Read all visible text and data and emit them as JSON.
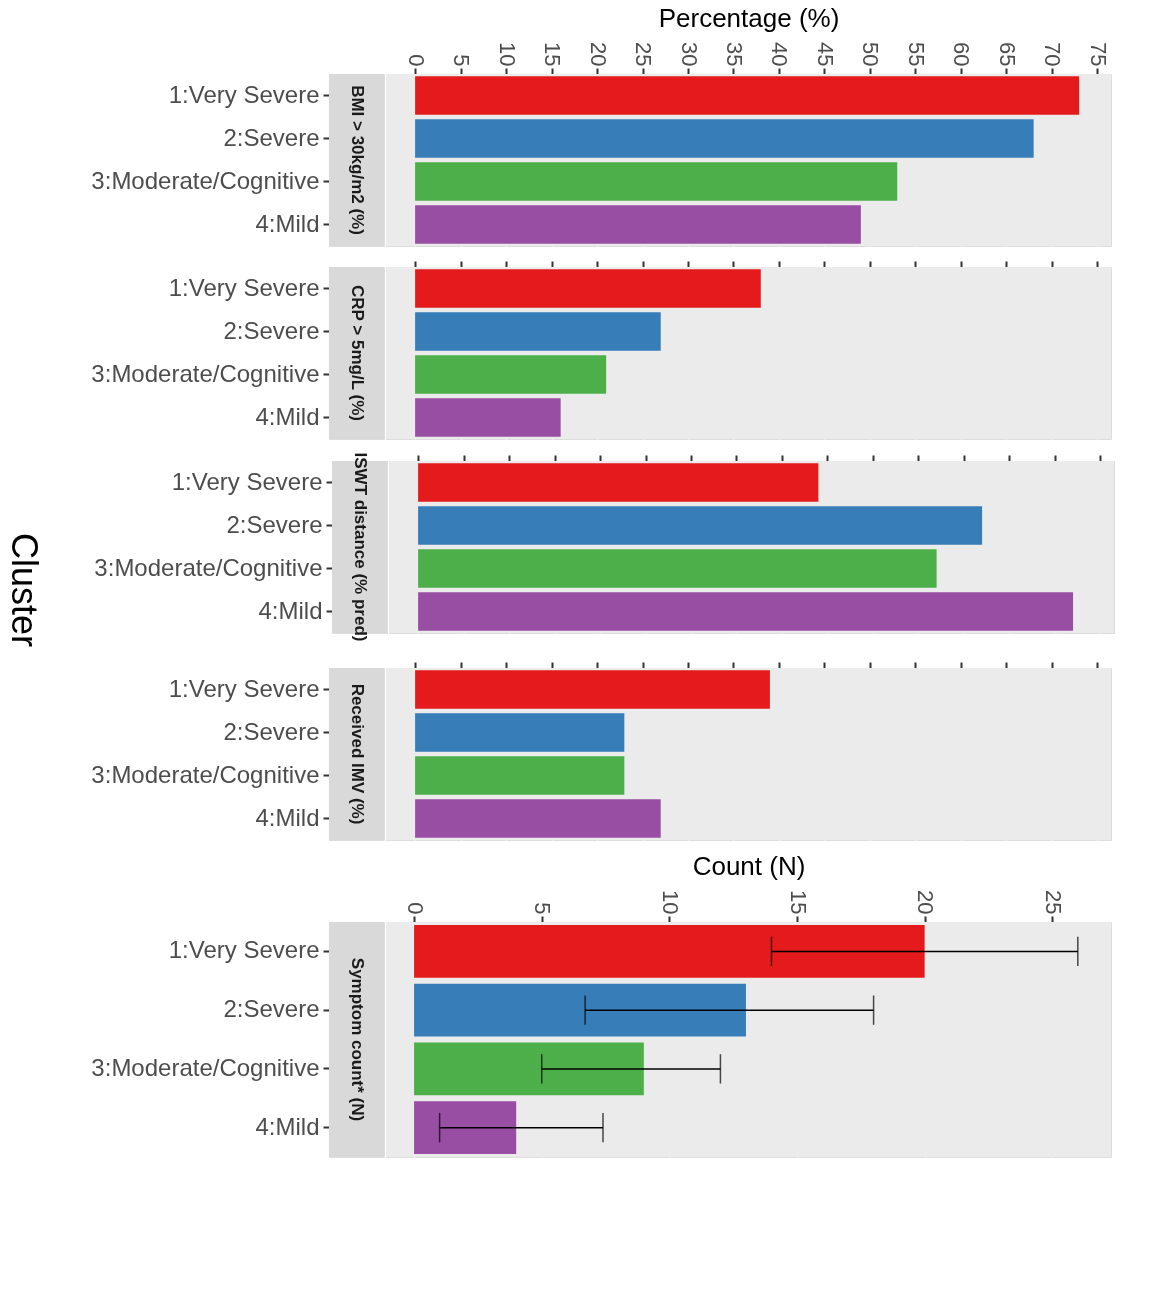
{
  "chart_data": [
    {
      "type": "bar",
      "orientation": "horizontal",
      "title": "BMI > 30kg/m2 (%)",
      "xlabel": "Percentage (%)",
      "grid": true,
      "categories": [
        "1:Very Severe",
        "2:Severe",
        "3:Moderate/Cognitive",
        "4:Mild"
      ],
      "values": [
        73,
        68,
        53,
        49
      ],
      "colors": [
        "#e41a1c",
        "#377eb8",
        "#4daf4a",
        "#984ea3"
      ],
      "xlim": [
        -3.2,
        76.5
      ],
      "xticks": [
        0,
        5,
        10,
        15,
        20,
        25,
        30,
        35,
        40,
        45,
        50,
        55,
        60,
        65,
        70,
        75
      ]
    },
    {
      "type": "bar",
      "orientation": "horizontal",
      "title": "CRP > 5mg/L (%)",
      "grid": true,
      "tick_labels": "y",
      "categories": [
        "1:Very Severe",
        "2:Severe",
        "3:Moderate/Cognitive",
        "4:Mild"
      ],
      "values": [
        38,
        27,
        21,
        16
      ],
      "colors": [
        "#e41a1c",
        "#377eb8",
        "#4daf4a",
        "#984ea3"
      ],
      "xlim": [
        -3.2,
        76.5
      ],
      "xticks": [
        0,
        5,
        10,
        15,
        20,
        25,
        30,
        35,
        40,
        45,
        50,
        55,
        60,
        65,
        70,
        75
      ]
    },
    {
      "type": "bar",
      "orientation": "horizontal",
      "title": "ISWT distance (% pred)",
      "ylabel": "Cluster",
      "grid": true,
      "tick_labels": "y",
      "categories": [
        "1:Very Severe",
        "2:Severe",
        "3:Moderate/Cognitive",
        "4:Mild"
      ],
      "values": [
        44,
        62,
        57,
        72
      ],
      "colors": [
        "#e41a1c",
        "#377eb8",
        "#4daf4a",
        "#984ea3"
      ],
      "xlim": [
        -3.2,
        76.5
      ],
      "xticks": [
        0,
        5,
        10,
        15,
        20,
        25,
        30,
        35,
        40,
        45,
        50,
        55,
        60,
        65,
        70,
        75
      ]
    },
    {
      "type": "bar",
      "orientation": "horizontal",
      "title": "Received IMV (%)",
      "grid": true,
      "tick_labels": "y",
      "categories": [
        "1:Very Severe",
        "2:Severe",
        "3:Moderate/Cognitive",
        "4:Mild"
      ],
      "values": [
        39,
        23,
        23,
        27
      ],
      "colors": [
        "#e41a1c",
        "#377eb8",
        "#4daf4a",
        "#984ea3"
      ],
      "xlim": [
        -3.2,
        76.5
      ],
      "xticks": [
        0,
        5,
        10,
        15,
        20,
        25,
        30,
        35,
        40,
        45,
        50,
        55,
        60,
        65,
        70,
        75
      ]
    },
    {
      "type": "bar",
      "orientation": "horizontal",
      "title": "Symptom count* (N)",
      "xlabel": "Count (N)",
      "grid": true,
      "categories": [
        "1:Very Severe",
        "2:Severe",
        "3:Moderate/Cognitive",
        "4:Mild"
      ],
      "values": [
        20,
        13,
        9,
        4
      ],
      "errors": [
        [
          14,
          26
        ],
        [
          6.7,
          18
        ],
        [
          5,
          12
        ],
        [
          1,
          7.4
        ]
      ],
      "colors": [
        "#e41a1c",
        "#377eb8",
        "#4daf4a",
        "#984ea3"
      ],
      "xlim": [
        -1.1,
        27.3
      ],
      "xticks": [
        0,
        5,
        10,
        15,
        20,
        25
      ]
    }
  ]
}
